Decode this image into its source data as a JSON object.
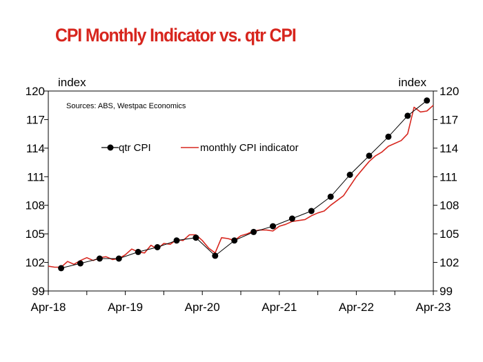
{
  "title": "CPI Monthly Indicator vs. qtr CPI",
  "colors": {
    "title": "#d7261e",
    "qtr": "#000000",
    "monthly": "#d7261e",
    "axis": "#000000"
  },
  "chart_data": {
    "type": "line",
    "title": "CPI Monthly Indicator vs. qtr CPI",
    "source": "Sources: ABS, Westpac Economics",
    "ylabel_left": "index",
    "ylabel_right": "index",
    "ylim": [
      99,
      120
    ],
    "yticks": [
      99,
      102,
      105,
      108,
      111,
      114,
      117,
      120
    ],
    "xlim": [
      "Apr-18",
      "Apr-23"
    ],
    "xtick_labels": [
      "Apr-18",
      "Apr-19",
      "Apr-20",
      "Apr-21",
      "Apr-22",
      "Apr-23"
    ],
    "legend_position": "upper-left, inside plot",
    "series": [
      {
        "name": "qtr CPI",
        "style": "black line with circle markers",
        "x": [
          "2018-06",
          "2018-09",
          "2018-12",
          "2019-03",
          "2019-06",
          "2019-09",
          "2019-12",
          "2020-03",
          "2020-06",
          "2020-09",
          "2020-12",
          "2021-03",
          "2021-06",
          "2021-09",
          "2021-12",
          "2022-03",
          "2022-06",
          "2022-09",
          "2022-12",
          "2023-03"
        ],
        "y": [
          101.4,
          101.9,
          102.4,
          102.4,
          103.1,
          103.6,
          104.3,
          104.6,
          102.7,
          104.3,
          105.2,
          105.8,
          106.6,
          107.4,
          108.9,
          111.2,
          113.2,
          115.2,
          117.4,
          119.0
        ]
      },
      {
        "name": "monthly CPI indicator",
        "style": "red line",
        "x": [
          "2018-04",
          "2018-05",
          "2018-06",
          "2018-07",
          "2018-08",
          "2018-09",
          "2018-10",
          "2018-11",
          "2018-12",
          "2019-01",
          "2019-02",
          "2019-03",
          "2019-04",
          "2019-05",
          "2019-06",
          "2019-07",
          "2019-08",
          "2019-09",
          "2019-10",
          "2019-11",
          "2019-12",
          "2020-01",
          "2020-02",
          "2020-03",
          "2020-04",
          "2020-05",
          "2020-06",
          "2020-07",
          "2020-08",
          "2020-09",
          "2020-10",
          "2020-11",
          "2020-12",
          "2021-01",
          "2021-02",
          "2021-03",
          "2021-04",
          "2021-05",
          "2021-06",
          "2021-07",
          "2021-08",
          "2021-09",
          "2021-10",
          "2021-11",
          "2021-12",
          "2022-01",
          "2022-02",
          "2022-03",
          "2022-04",
          "2022-05",
          "2022-06",
          "2022-07",
          "2022-08",
          "2022-09",
          "2022-10",
          "2022-11",
          "2022-12",
          "2023-01",
          "2023-02",
          "2023-03",
          "2023-04"
        ],
        "y": [
          101.6,
          101.5,
          101.5,
          102.1,
          101.8,
          102.2,
          102.5,
          102.2,
          102.5,
          102.6,
          102.3,
          102.4,
          102.8,
          103.4,
          103.1,
          103.0,
          103.8,
          103.4,
          104.0,
          103.9,
          104.4,
          104.3,
          104.9,
          104.9,
          104.3,
          103.5,
          103.0,
          104.6,
          104.5,
          104.3,
          104.8,
          105.0,
          105.3,
          105.4,
          105.4,
          105.3,
          105.8,
          106.0,
          106.3,
          106.4,
          106.5,
          106.9,
          107.2,
          107.4,
          108.0,
          108.5,
          109.0,
          110.0,
          111.0,
          111.8,
          112.6,
          113.2,
          113.6,
          114.2,
          114.5,
          114.8,
          115.5,
          118.3,
          117.8,
          117.9,
          118.5
        ]
      }
    ]
  }
}
